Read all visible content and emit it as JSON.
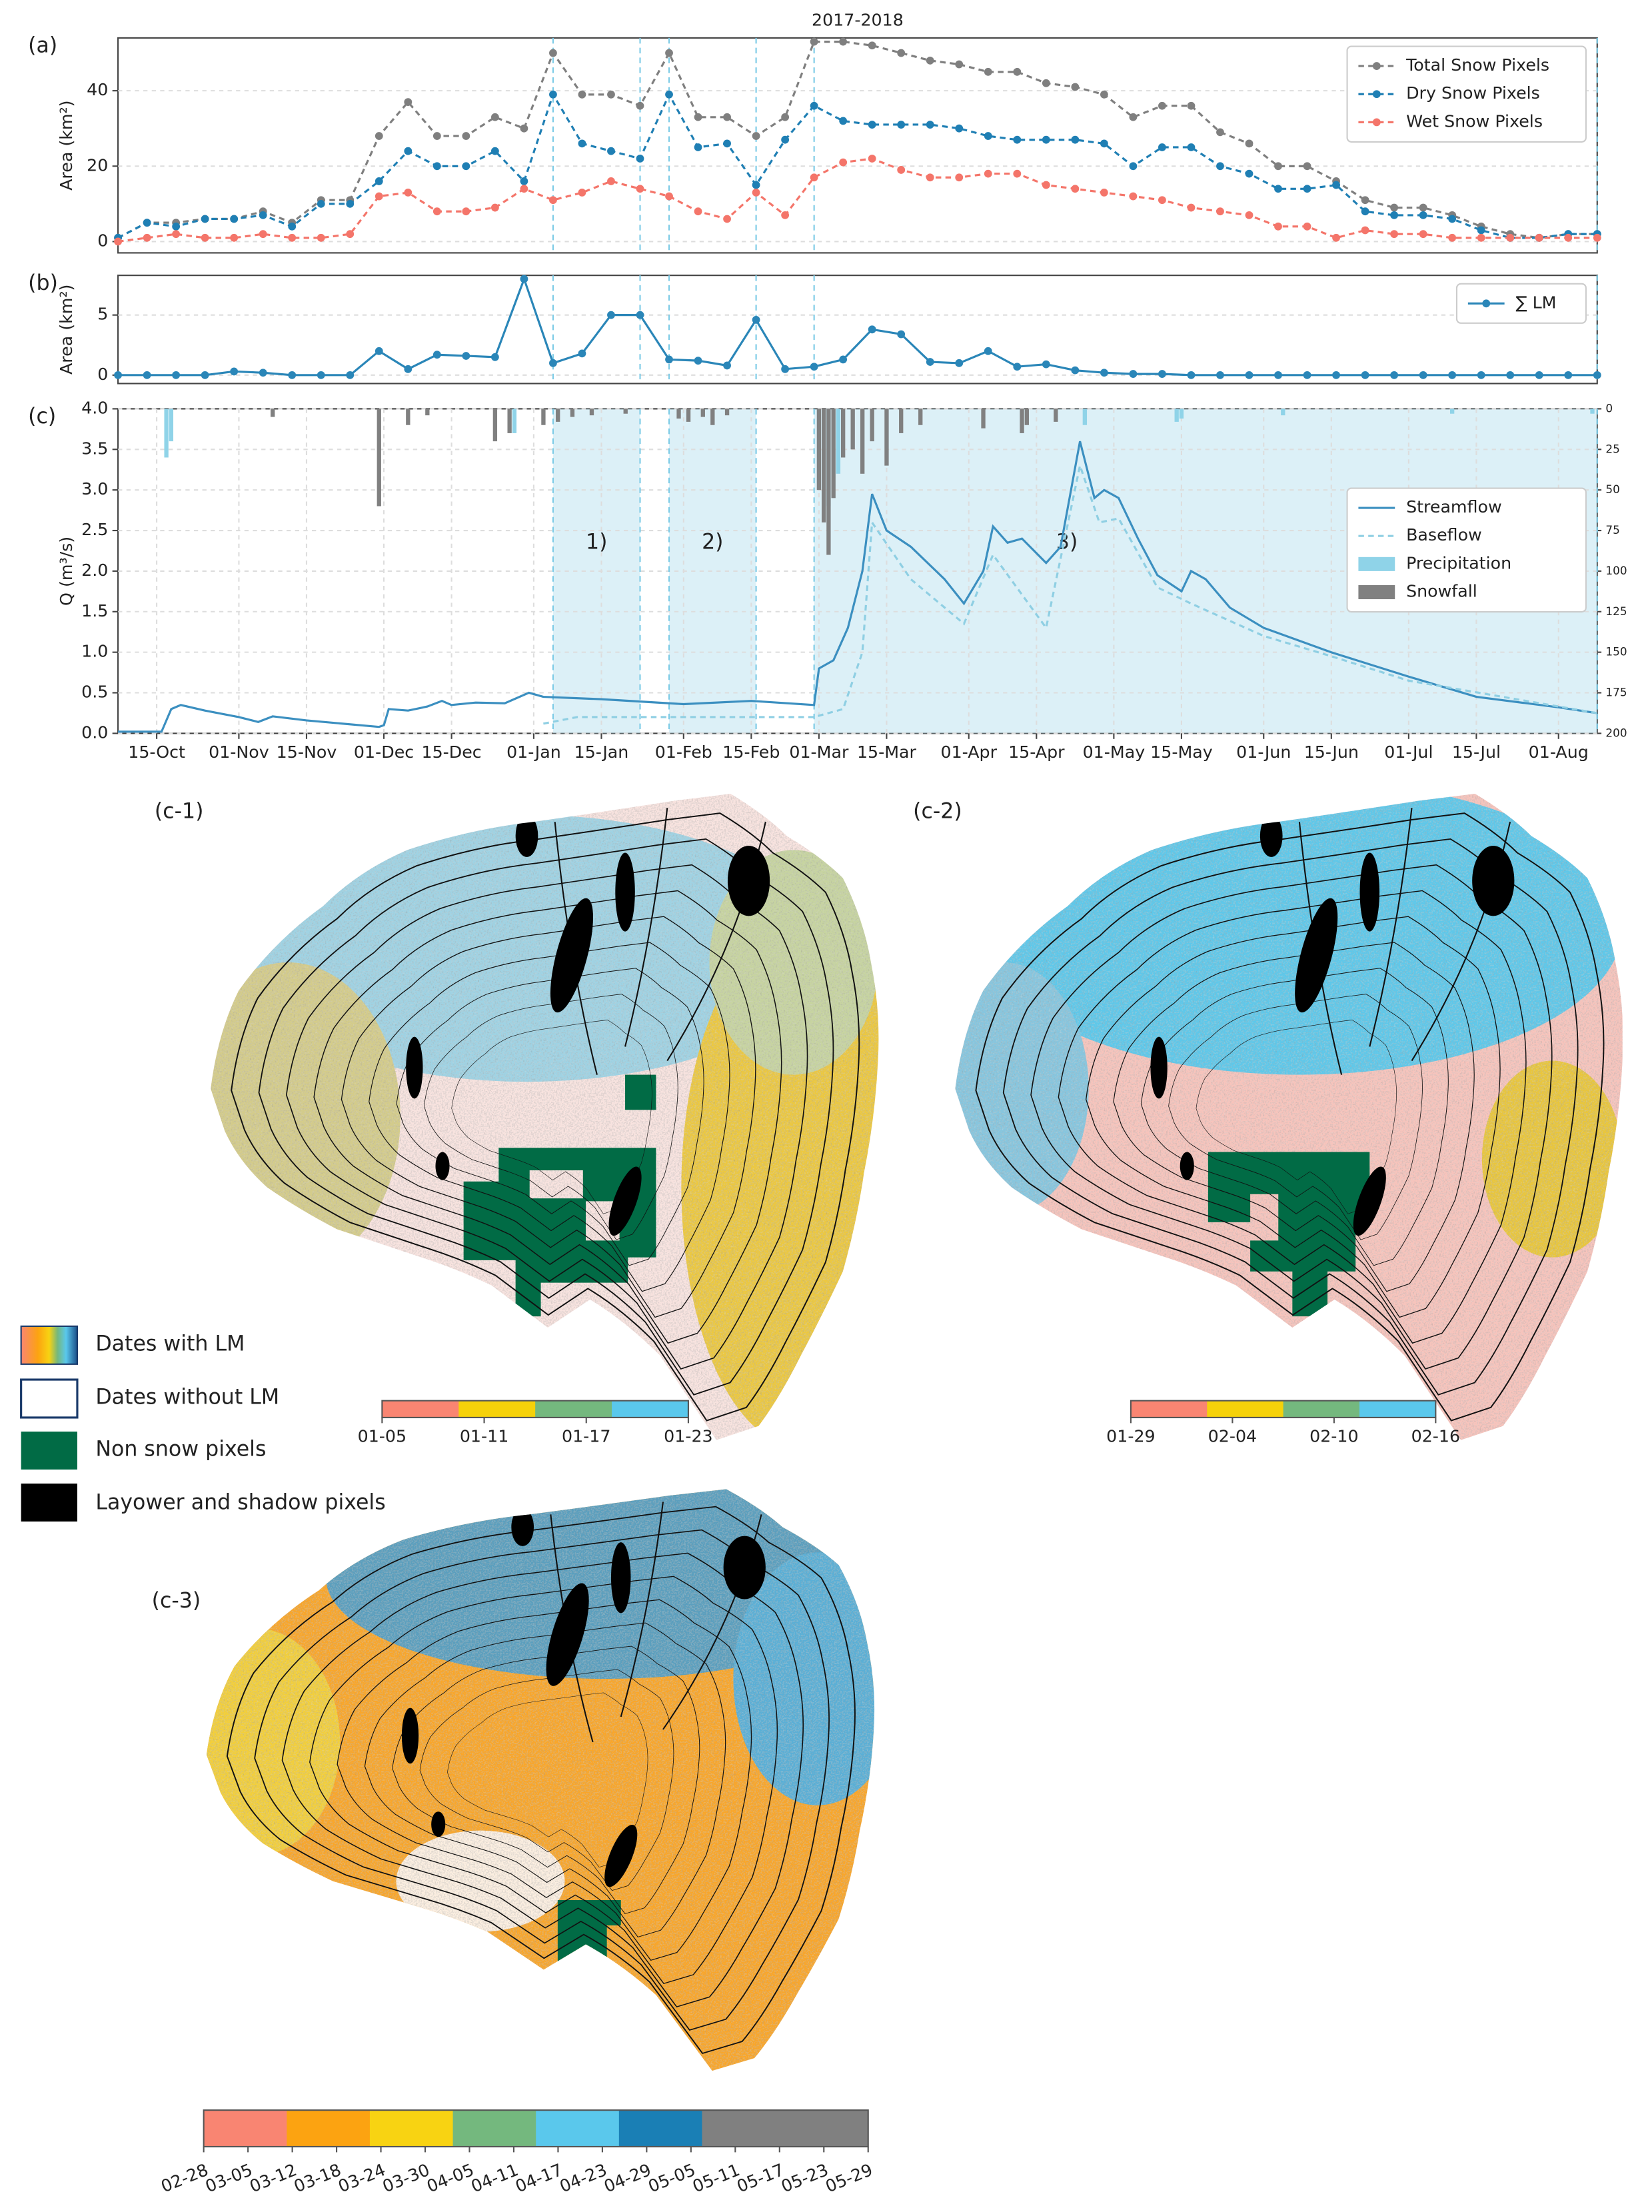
{
  "chart_data": [
    {
      "type": "line",
      "panel_label": "(a)",
      "title": "2017-2018",
      "y_label": "Area (km²)",
      "x": [
        "10-07",
        "10-13",
        "10-19",
        "10-25",
        "10-31",
        "11-06",
        "11-12",
        "11-18",
        "11-24",
        "11-30",
        "12-06",
        "12-12",
        "12-18",
        "12-24",
        "12-30",
        "01-05",
        "01-11",
        "01-17",
        "01-23",
        "01-29",
        "02-04",
        "02-10",
        "02-16",
        "02-22",
        "02-28",
        "03-06",
        "03-12",
        "03-18",
        "03-24",
        "03-30",
        "04-05",
        "04-11",
        "04-17",
        "04-23",
        "04-29",
        "05-05",
        "05-11",
        "05-17",
        "05-23",
        "05-29",
        "06-04",
        "06-10",
        "06-16",
        "06-22",
        "06-28",
        "07-04",
        "07-10",
        "07-16",
        "07-22",
        "07-28",
        "08-03",
        "08-09"
      ],
      "xlim": [
        "10-07",
        "08-09"
      ],
      "ylim": [
        -3,
        54
      ],
      "yticks": [
        0,
        20,
        40
      ],
      "grid": true,
      "legend": "upper right",
      "series": [
        {
          "name": "Total Snow Pixels",
          "color": "#7f7f7f",
          "linestyle": "dashed",
          "marker": true,
          "values": [
            1,
            5,
            5,
            6,
            6,
            8,
            5,
            11,
            11,
            28,
            37,
            28,
            28,
            33,
            30,
            50,
            39,
            39,
            36,
            50,
            33,
            33,
            28,
            33,
            53,
            53,
            52,
            50,
            48,
            47,
            45,
            45,
            42,
            41,
            39,
            33,
            36,
            36,
            29,
            26,
            20,
            20,
            16,
            11,
            9,
            9,
            7,
            4,
            2,
            1,
            2,
            2
          ]
        },
        {
          "name": "Dry Snow Pixels",
          "color": "#1f7fb4",
          "linestyle": "dashed",
          "marker": true,
          "values": [
            1,
            5,
            4,
            6,
            6,
            7,
            4,
            10,
            10,
            16,
            24,
            20,
            20,
            24,
            16,
            39,
            26,
            24,
            22,
            39,
            25,
            26,
            15,
            27,
            36,
            32,
            31,
            31,
            31,
            30,
            28,
            27,
            27,
            27,
            26,
            20,
            25,
            25,
            20,
            18,
            14,
            14,
            15,
            8,
            7,
            7,
            6,
            3,
            1,
            1,
            2,
            2
          ]
        },
        {
          "name": "Wet Snow Pixels",
          "color": "#f4756a",
          "linestyle": "dashed",
          "marker": true,
          "values": [
            0,
            1,
            2,
            1,
            1,
            2,
            1,
            1,
            2,
            12,
            13,
            8,
            8,
            9,
            14,
            11,
            13,
            16,
            14,
            12,
            8,
            6,
            13,
            7,
            17,
            21,
            22,
            19,
            17,
            17,
            18,
            18,
            15,
            14,
            13,
            12,
            11,
            9,
            8,
            7,
            4,
            4,
            1,
            3,
            2,
            2,
            1,
            1,
            1,
            1,
            1,
            1
          ]
        }
      ]
    },
    {
      "type": "line",
      "panel_label": "(b)",
      "y_label": "Area (km²)",
      "x": [
        "10-07",
        "10-13",
        "10-19",
        "10-25",
        "10-31",
        "11-06",
        "11-12",
        "11-18",
        "11-24",
        "11-30",
        "12-06",
        "12-12",
        "12-18",
        "12-24",
        "12-30",
        "01-05",
        "01-11",
        "01-17",
        "01-23",
        "01-29",
        "02-04",
        "02-10",
        "02-16",
        "02-22",
        "02-28",
        "03-06",
        "03-12",
        "03-18",
        "03-24",
        "03-30",
        "04-05",
        "04-11",
        "04-17",
        "04-23",
        "04-29",
        "05-05",
        "05-11",
        "05-17",
        "05-23",
        "05-29",
        "06-04",
        "06-10",
        "06-16",
        "06-22",
        "06-28",
        "07-04",
        "07-10",
        "07-16",
        "07-22",
        "07-28",
        "08-03",
        "08-09"
      ],
      "xlim": [
        "10-07",
        "08-09"
      ],
      "ylim": [
        -0.7,
        8.3
      ],
      "yticks": [
        0,
        5
      ],
      "grid": true,
      "legend": "upper right",
      "series": [
        {
          "name": "∑ LM",
          "color": "#2a86b8",
          "linestyle": "solid",
          "marker": true,
          "values": [
            0,
            0,
            0,
            0,
            0.3,
            0.2,
            0,
            0,
            0,
            2,
            0.5,
            1.7,
            1.6,
            1.5,
            8,
            1,
            1.8,
            5,
            5,
            1.3,
            1.2,
            0.8,
            4.6,
            0.5,
            0.7,
            1.3,
            3.8,
            3.4,
            1.1,
            1,
            2,
            0.7,
            0.9,
            0.4,
            0.2,
            0.1,
            0.1,
            0,
            0,
            0,
            0,
            0,
            0,
            0,
            0,
            0,
            0,
            0,
            0,
            0,
            0,
            0
          ]
        }
      ]
    },
    {
      "type": "line",
      "panel_label": "(c)",
      "y_label": "Q (m³/s)",
      "xlim": [
        "10-07",
        "08-09"
      ],
      "ylim": [
        0,
        4
      ],
      "yticks": [
        {
          "value": 0,
          "label": "0.0"
        },
        0.5,
        {
          "value": 1,
          "label": "1.0"
        },
        1.5,
        {
          "value": 2,
          "label": "2.0"
        },
        2.5,
        {
          "value": 3,
          "label": "3.0"
        },
        3.5,
        {
          "value": 4,
          "label": "4.0"
        }
      ],
      "y2lim": [
        200,
        0
      ],
      "y2ticks": [
        0,
        25,
        50,
        75,
        100,
        125,
        150,
        175,
        200
      ],
      "xticks": [
        {
          "value": "10-15",
          "label": "15-Oct"
        },
        {
          "value": "11-01",
          "label": "01-Nov"
        },
        {
          "value": "11-15",
          "label": "15-Nov"
        },
        {
          "value": "12-01",
          "label": "01-Dec"
        },
        {
          "value": "12-15",
          "label": "15-Dec"
        },
        {
          "value": "01-01",
          "label": "01-Jan"
        },
        {
          "value": "01-15",
          "label": "15-Jan"
        },
        {
          "value": "02-01",
          "label": "01-Feb"
        },
        {
          "value": "02-15",
          "label": "15-Feb"
        },
        {
          "value": "03-01",
          "label": "01-Mar"
        },
        {
          "value": "03-15",
          "label": "15-Mar"
        },
        {
          "value": "04-01",
          "label": "01-Apr"
        },
        {
          "value": "04-15",
          "label": "15-Apr"
        },
        {
          "value": "05-01",
          "label": "01-May"
        },
        {
          "value": "05-15",
          "label": "15-May"
        },
        {
          "value": "06-01",
          "label": "01-Jun"
        },
        {
          "value": "06-15",
          "label": "15-Jun"
        },
        {
          "value": "07-01",
          "label": "01-Jul"
        },
        {
          "value": "07-15",
          "label": "15-Jul"
        },
        {
          "value": "08-01",
          "label": "01-Aug"
        }
      ],
      "grid": true,
      "legend": "center right",
      "periods": [
        {
          "start": "01-05",
          "end": "01-23",
          "label": "1)"
        },
        {
          "start": "01-29",
          "end": "02-16",
          "label": "2)"
        },
        {
          "start": "02-28",
          "end": "08-09",
          "label": "3)"
        }
      ],
      "series": [
        {
          "name": "Streamflow",
          "color": "#3b8fc0",
          "linestyle": "solid",
          "x": [
            "10-07",
            "10-16",
            "10-18",
            "10-20",
            "10-25",
            "11-01",
            "11-05",
            "11-08",
            "11-15",
            "11-30",
            "12-01",
            "12-02",
            "12-06",
            "12-10",
            "12-13",
            "12-15",
            "12-20",
            "12-26",
            "12-31",
            "01-03",
            "01-15",
            "02-01",
            "02-15",
            "02-28",
            "03-01",
            "03-04",
            "03-07",
            "03-10",
            "03-12",
            "03-15",
            "03-20",
            "03-27",
            "03-31",
            "04-04",
            "04-06",
            "04-09",
            "04-12",
            "04-17",
            "04-20",
            "04-24",
            "04-27",
            "04-29",
            "05-02",
            "05-06",
            "05-10",
            "05-15",
            "05-17",
            "05-20",
            "05-25",
            "06-01",
            "06-15",
            "07-01",
            "07-15",
            "08-01",
            "08-09"
          ],
          "values": [
            0.02,
            0.02,
            0.3,
            0.35,
            0.28,
            0.2,
            0.14,
            0.21,
            0.16,
            0.08,
            0.1,
            0.3,
            0.28,
            0.33,
            0.4,
            0.35,
            0.38,
            0.37,
            0.5,
            0.45,
            0.42,
            0.36,
            0.4,
            0.35,
            0.8,
            0.9,
            1.3,
            2.0,
            2.95,
            2.5,
            2.3,
            1.9,
            1.6,
            2.0,
            2.55,
            2.35,
            2.4,
            2.1,
            2.3,
            3.6,
            2.9,
            3.0,
            2.9,
            2.4,
            1.95,
            1.75,
            2.0,
            1.9,
            1.55,
            1.3,
            1.0,
            0.7,
            0.45,
            0.32,
            0.25
          ]
        },
        {
          "name": "Baseflow",
          "color": "#8fcfe3",
          "linestyle": "dashed",
          "x": [
            "01-03",
            "01-10",
            "02-28",
            "03-06",
            "03-10",
            "03-12",
            "03-20",
            "03-31",
            "04-06",
            "04-17",
            "04-24",
            "04-28",
            "05-02",
            "05-10",
            "05-17",
            "06-01",
            "06-15",
            "07-01",
            "08-09"
          ],
          "values": [
            0.12,
            0.2,
            0.2,
            0.3,
            1.0,
            2.6,
            1.9,
            1.35,
            2.2,
            1.3,
            3.3,
            2.6,
            2.65,
            1.8,
            1.6,
            1.2,
            0.95,
            0.65,
            0.25
          ]
        },
        {
          "name": "Precipitation",
          "color": "#8fd3e8",
          "type": "bar",
          "axis": "y2",
          "x": [
            "10-17",
            "10-18",
            "12-28",
            "03-03",
            "03-05",
            "04-25",
            "05-14",
            "05-15",
            "06-05",
            "07-10",
            "08-08"
          ],
          "values": [
            30,
            20,
            15,
            60,
            40,
            10,
            8,
            6,
            4,
            3,
            3
          ]
        },
        {
          "name": "Snowfall",
          "color": "#808080",
          "type": "bar",
          "axis": "y2",
          "x": [
            "11-08",
            "11-30",
            "12-06",
            "12-10",
            "12-24",
            "12-27",
            "01-03",
            "01-06",
            "01-09",
            "01-13",
            "01-20",
            "01-31",
            "02-02",
            "02-05",
            "02-07",
            "02-10",
            "03-01",
            "03-02",
            "03-03",
            "03-04",
            "03-06",
            "03-08",
            "03-10",
            "03-12",
            "03-15",
            "03-18",
            "03-22",
            "04-04",
            "04-12",
            "04-13",
            "04-19"
          ],
          "values": [
            5,
            60,
            10,
            4,
            20,
            15,
            10,
            8,
            5,
            4,
            3,
            6,
            8,
            5,
            10,
            4,
            50,
            70,
            90,
            55,
            30,
            25,
            40,
            20,
            35,
            15,
            10,
            12,
            15,
            10,
            8
          ]
        }
      ]
    }
  ],
  "maps": [
    {
      "label": "(c-1)",
      "colorbar": {
        "colors": [
          "#f98572",
          "#f5d10a",
          "#74b87e",
          "#5ac8ec"
        ],
        "ticks": [
          "01-05",
          "01-11",
          "01-17",
          "01-23"
        ]
      }
    },
    {
      "label": "(c-2)",
      "colorbar": {
        "colors": [
          "#f98572",
          "#f5d10a",
          "#74b87e",
          "#5ac8ec"
        ],
        "ticks": [
          "01-29",
          "02-04",
          "02-10",
          "02-16"
        ]
      }
    },
    {
      "label": "(c-3)",
      "colorbar": {
        "colors": [
          "#f98572",
          "#fca311",
          "#f8d312",
          "#74b87e",
          "#5ac8ec",
          "#1a7fb5",
          "#808080",
          "#808080"
        ],
        "ticks": [
          "02-28",
          "03-05",
          "03-12",
          "03-18",
          "03-24",
          "03-30",
          "04-05",
          "04-11",
          "04-17",
          "04-23",
          "04-29",
          "05-05",
          "05-11",
          "05-17",
          "05-23",
          "05-29"
        ]
      }
    }
  ],
  "map_legend": [
    "Dates with LM",
    "Dates without LM",
    "Non snow pixels",
    "Layower and shadow pixels"
  ]
}
